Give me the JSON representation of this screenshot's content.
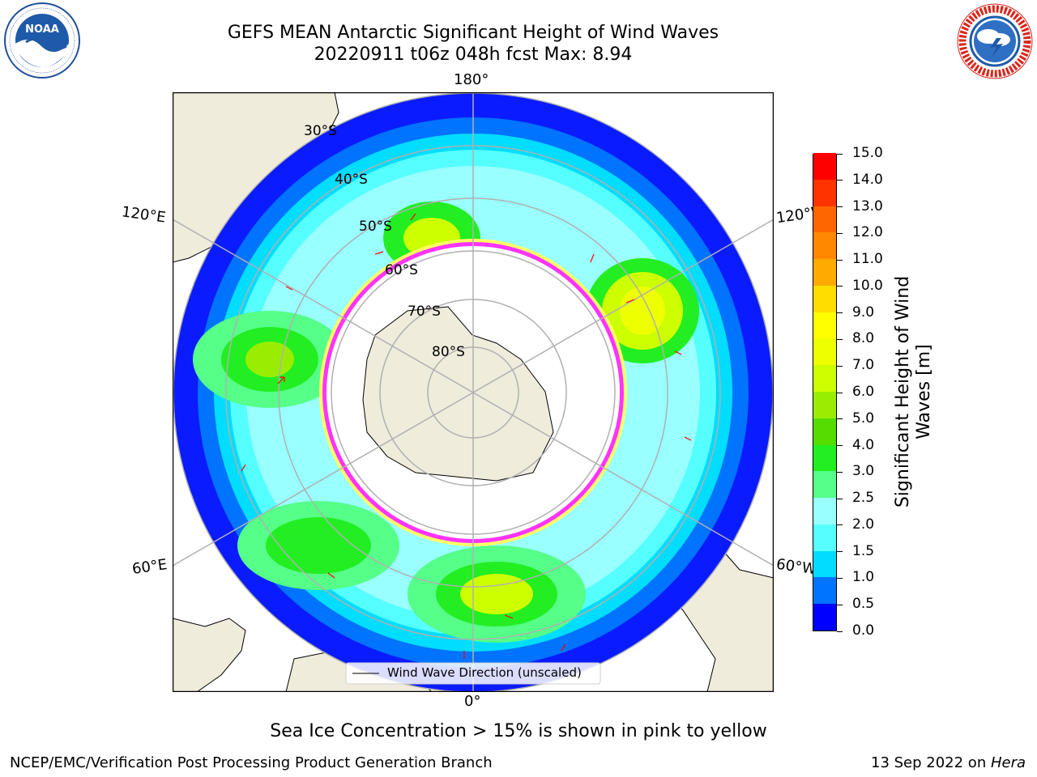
{
  "title": {
    "line1": "GEFS MEAN Antarctic Significant Height of Wind Waves",
    "line2": "20220911 t06z 048h fcst   Max: 8.94"
  },
  "logos": {
    "noaa": {
      "center_text": "NOAA",
      "ring_text": "NATIONAL OCEANIC AND ATMOSPHERIC ADMINISTRATION · U.S. DEPARTMENT OF COMMERCE"
    },
    "nws": {
      "ring_text": "NATIONAL WEATHER SERVICE"
    }
  },
  "map": {
    "projection": "south-polar-stereographic",
    "lon_labels": [
      "180°",
      "120°E",
      "120°W",
      "60°E",
      "60°W",
      "0°"
    ],
    "lat_labels": [
      "30°S",
      "40°S",
      "50°S",
      "60°S",
      "70°S",
      "80°S"
    ],
    "legend_label": "Wind Wave Direction (unscaled)",
    "land_color": "#efecdc",
    "arrow_color": "#ff0000",
    "ice_colors": [
      "#ff33ff",
      "#ffb000",
      "#ffff66"
    ]
  },
  "colorbar": {
    "label": "Significant Height of Wind Waves [m]",
    "ticks": [
      "0.0",
      "0.5",
      "1.0",
      "1.5",
      "2.0",
      "2.5",
      "3.0",
      "4.0",
      "5.0",
      "6.0",
      "7.0",
      "8.0",
      "9.0",
      "10.0",
      "11.0",
      "12.0",
      "13.0",
      "14.0",
      "15.0"
    ],
    "colors": [
      "#0000ff",
      "#0073ff",
      "#00ddff",
      "#55ffff",
      "#99ffff",
      "#55ff88",
      "#22ee22",
      "#55dd00",
      "#99ee00",
      "#ccff00",
      "#eeff00",
      "#ffff00",
      "#ffdd00",
      "#ffaa00",
      "#ff8800",
      "#ff6600",
      "#ff3300",
      "#ff0000"
    ]
  },
  "note": "Sea Ice Concentration > 15% is shown in pink to yellow",
  "footer": {
    "left": "NCEP/EMC/Verification Post Processing Product Generation Branch",
    "right_date": "13 Sep 2022 on ",
    "right_host": "Hera"
  }
}
